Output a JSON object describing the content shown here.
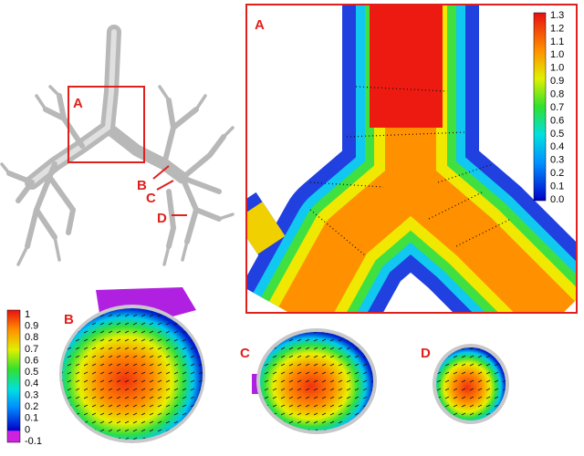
{
  "overview": {
    "box_label": "A",
    "section_labels": [
      "B",
      "C",
      "D"
    ]
  },
  "panel_a": {
    "label": "A",
    "colorbar_ticks": [
      "1.3",
      "1.2",
      "1.1",
      "1.0",
      "1.0",
      "0.9",
      "0.8",
      "0.7",
      "0.6",
      "0.5",
      "0.4",
      "0.3",
      "0.2",
      "0.1",
      "0.0"
    ]
  },
  "panels": [
    {
      "label": "B"
    },
    {
      "label": "C"
    },
    {
      "label": "D"
    }
  ],
  "colorbar": {
    "ticks": [
      "1",
      "0.9",
      "0.8",
      "0.7",
      "0.6",
      "0.5",
      "0.4",
      "0.3",
      "0.2",
      "0.1",
      "0",
      "-0.1"
    ]
  }
}
